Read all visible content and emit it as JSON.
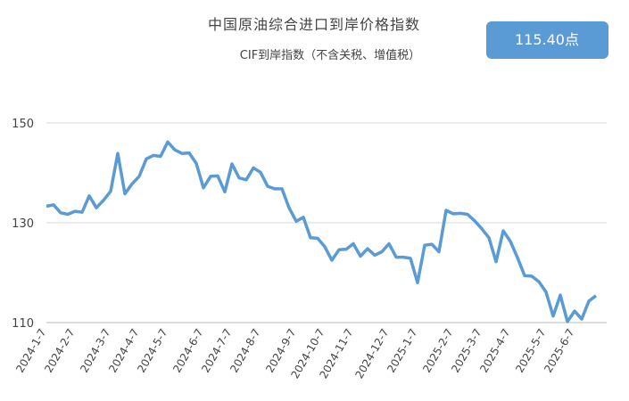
{
  "chart_data": {
    "type": "line",
    "title": "中国原油综合进口到岸价格指数",
    "subtitle": "CIF到岸指数（不含关税、增值税）",
    "badge": "115.40点",
    "categories": [
      "2024-1-7",
      null,
      null,
      null,
      "2024-2-7",
      null,
      null,
      null,
      null,
      "2024-3-7",
      null,
      null,
      null,
      "2024-4-7",
      null,
      null,
      null,
      "2024-5-7",
      null,
      null,
      null,
      null,
      "2024-6-7",
      null,
      null,
      null,
      "2024-7-7",
      null,
      null,
      null,
      "2024-8-7",
      null,
      null,
      null,
      null,
      "2024-9-7",
      null,
      null,
      null,
      "2024-10-7",
      null,
      null,
      null,
      "2024-11-7",
      null,
      null,
      null,
      null,
      "2024-12-7",
      null,
      null,
      null,
      "2025-1-7",
      null,
      null,
      null,
      null,
      "2025-2-7",
      null,
      null,
      null,
      "2025-3-7",
      null,
      null,
      null,
      "2025-4-7",
      null,
      null,
      null,
      null,
      "2025-5-7",
      null,
      null,
      null,
      "2025-6-7",
      null,
      null,
      null
    ],
    "series": [
      {
        "name": "CIF到岸指数",
        "color": "#5b9bd5",
        "values": [
          133.3,
          133.6,
          132.0,
          131.7,
          132.3,
          132.1,
          135.4,
          133.0,
          134.5,
          136.3,
          143.9,
          135.8,
          137.8,
          139.3,
          142.8,
          143.5,
          143.3,
          146.2,
          144.6,
          143.9,
          144.0,
          141.9,
          137.0,
          139.3,
          139.4,
          136.2,
          141.8,
          139.0,
          138.6,
          141.0,
          140.1,
          137.3,
          136.8,
          136.8,
          133.0,
          130.3,
          131.1,
          127.0,
          126.9,
          125.2,
          122.5,
          124.6,
          124.7,
          125.8,
          123.3,
          124.8,
          123.5,
          124.2,
          125.8,
          123.1,
          123.1,
          122.9,
          118.0,
          125.5,
          125.7,
          124.2,
          132.5,
          131.8,
          131.9,
          131.7,
          130.4,
          128.8,
          127.0,
          122.2,
          128.4,
          126.3,
          123.0,
          119.4,
          119.3,
          118.2,
          116.1,
          111.3,
          115.5,
          110.2,
          112.3,
          110.7,
          114.3,
          115.4
        ]
      }
    ],
    "ylim": [
      110,
      150
    ],
    "yticks": [
      110,
      130,
      150
    ],
    "grid": true
  }
}
